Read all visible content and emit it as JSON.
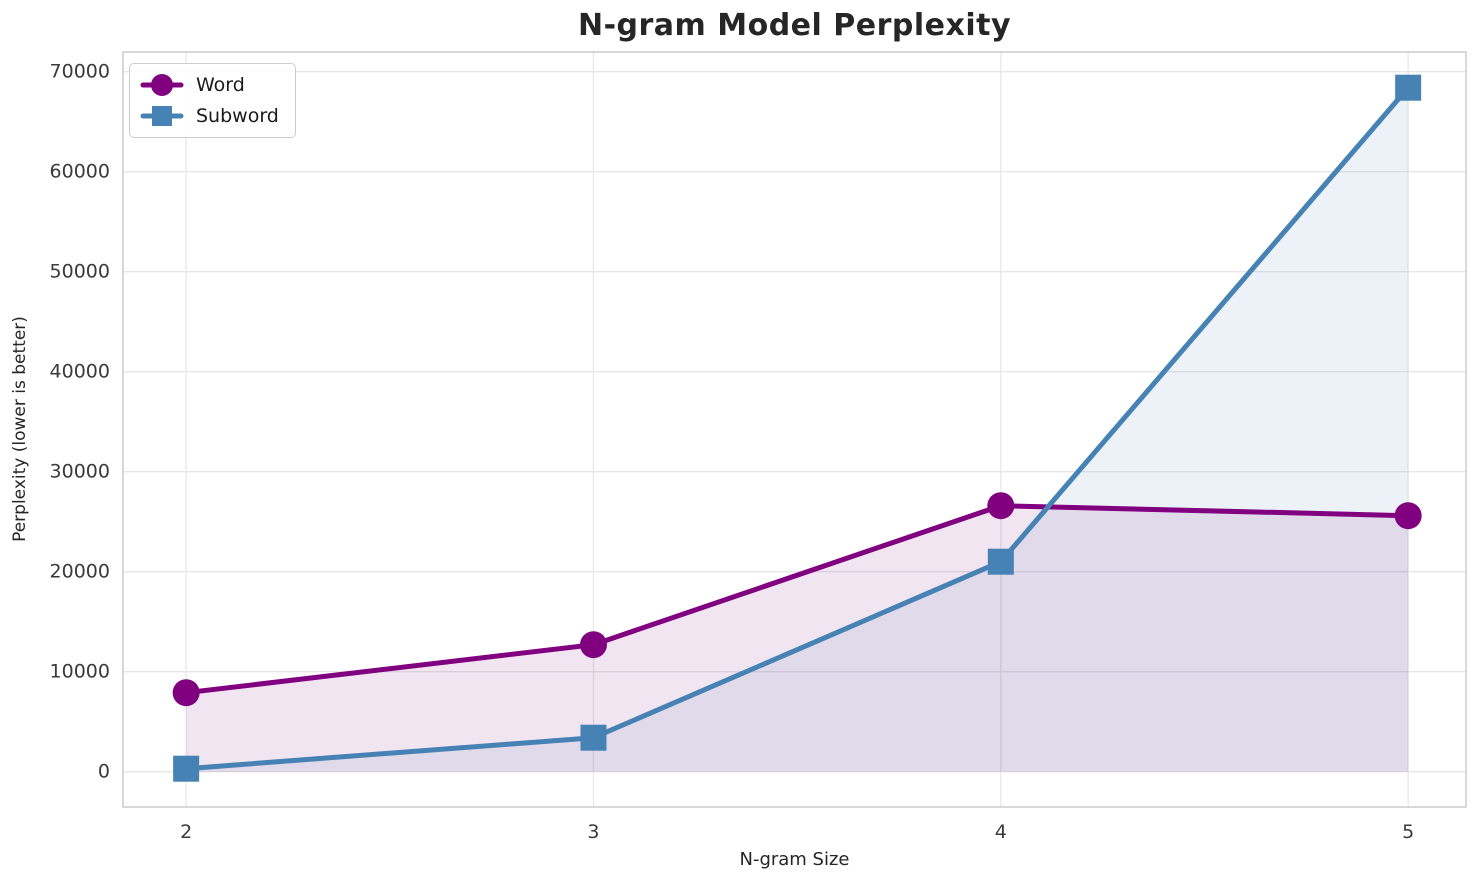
{
  "chart_data": {
    "type": "line",
    "title": "N-gram Model Perplexity",
    "xlabel": "N-gram Size",
    "ylabel": "Perplexity (lower is better)",
    "x": [
      2,
      3,
      4,
      5
    ],
    "xticks": [
      2,
      3,
      4,
      5
    ],
    "yticks": [
      0,
      10000,
      20000,
      30000,
      40000,
      50000,
      60000,
      70000
    ],
    "series": [
      {
        "name": "Word",
        "marker": "circle",
        "color": "#800080",
        "values": [
          7900,
          12700,
          26600,
          25600
        ]
      },
      {
        "name": "Subword",
        "marker": "square",
        "color": "#4682B4",
        "values": [
          300,
          3400,
          21000,
          68400
        ]
      }
    ],
    "fill_to_zero": true,
    "fill_alpha": 0.1,
    "grid": true,
    "legend_position": "upper left",
    "xlim": [
      1.845,
      5.142
    ],
    "ylim": [
      -3530,
      71970
    ],
    "colors": {
      "grid": "#e7e7e7",
      "spine": "#cccccc",
      "tick_label": "#3a3a3a",
      "title": "#262626"
    }
  }
}
